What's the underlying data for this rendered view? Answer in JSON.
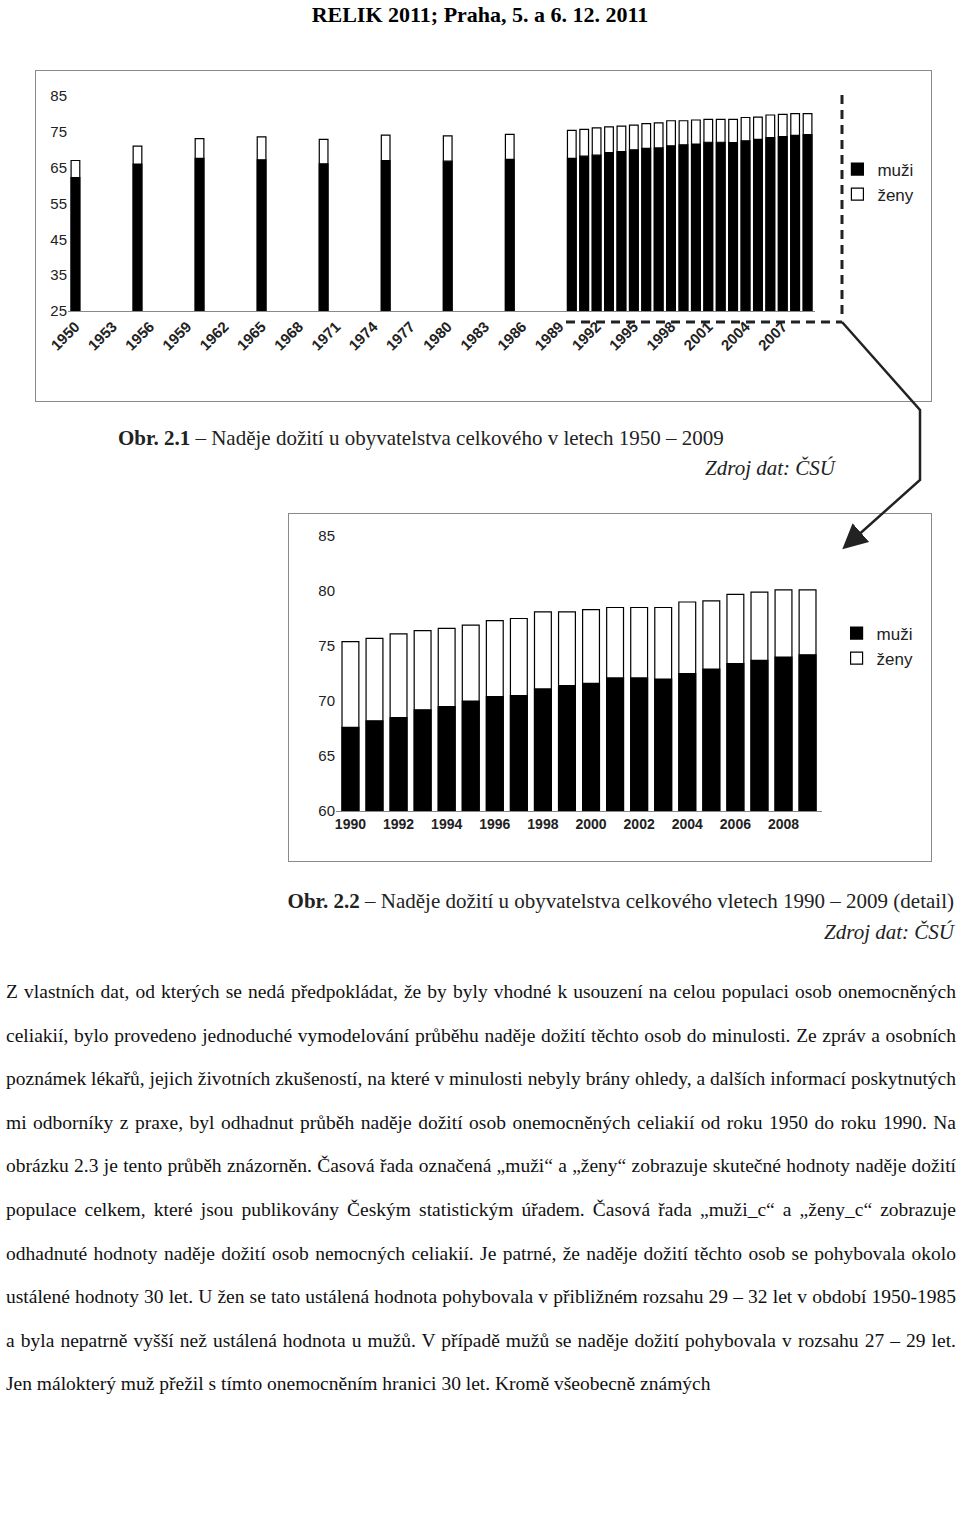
{
  "header": "RELIK 2011; Praha, 5. a 6. 12. 2011",
  "chart_data": [
    {
      "type": "bar",
      "categories": [
        "1950",
        null,
        null,
        "1953",
        null,
        null,
        "1956",
        null,
        null,
        "1959",
        null,
        null,
        "1962",
        null,
        null,
        "1965",
        null,
        null,
        "1968",
        null,
        null,
        "1971",
        null,
        null,
        "1974",
        null,
        null,
        "1977",
        null,
        null,
        "1980",
        null,
        null,
        "1983",
        null,
        null,
        "1986",
        null,
        null,
        "1989",
        null,
        null,
        "1992",
        null,
        null,
        "1995",
        null,
        null,
        "1998",
        null,
        null,
        "2001",
        null,
        null,
        "2004",
        null,
        null,
        "2007",
        null,
        null
      ],
      "series": [
        {
          "name": "ženy",
          "color": "#ffffff",
          "values": [
            67.0,
            null,
            null,
            null,
            null,
            71.0,
            null,
            null,
            null,
            null,
            73.1,
            null,
            null,
            null,
            null,
            73.6,
            null,
            null,
            null,
            null,
            72.9,
            null,
            null,
            null,
            null,
            74.1,
            null,
            null,
            null,
            null,
            73.9,
            null,
            null,
            null,
            null,
            74.3,
            null,
            null,
            null,
            null,
            75.4,
            75.7,
            76.1,
            76.4,
            76.6,
            76.9,
            77.3,
            77.5,
            78.1,
            78.1,
            78.3,
            78.5,
            78.5,
            78.5,
            79.0,
            79.1,
            79.7,
            79.9,
            80.1,
            80.1
          ]
        },
        {
          "name": "muži",
          "color": "#000000",
          "values": [
            62.2,
            null,
            null,
            null,
            null,
            66.0,
            null,
            null,
            null,
            null,
            67.6,
            null,
            null,
            null,
            null,
            67.2,
            null,
            null,
            null,
            null,
            66.1,
            null,
            null,
            null,
            null,
            67.0,
            null,
            null,
            null,
            null,
            66.8,
            null,
            null,
            null,
            null,
            67.3,
            null,
            null,
            null,
            null,
            67.6,
            68.2,
            68.5,
            69.2,
            69.5,
            70.0,
            70.4,
            70.5,
            71.1,
            71.4,
            71.6,
            72.1,
            72.1,
            72.0,
            72.5,
            72.9,
            73.4,
            73.7,
            74.0,
            74.2
          ]
        }
      ],
      "ylim": [
        25,
        85
      ],
      "yticks": [
        25,
        35,
        45,
        55,
        65,
        75,
        85
      ],
      "grid": false,
      "legend": "right"
    },
    {
      "type": "bar",
      "categories": [
        "1990",
        null,
        "1992",
        null,
        "1994",
        null,
        "1996",
        null,
        "1998",
        null,
        "2000",
        null,
        "2002",
        null,
        "2004",
        null,
        "2006",
        null,
        "2008",
        null
      ],
      "series": [
        {
          "name": "ženy",
          "color": "#ffffff",
          "values": [
            75.4,
            75.7,
            76.1,
            76.4,
            76.6,
            76.9,
            77.3,
            77.5,
            78.1,
            78.1,
            78.3,
            78.5,
            78.5,
            78.5,
            79.0,
            79.1,
            79.7,
            79.9,
            80.1,
            80.1
          ]
        },
        {
          "name": "muži",
          "color": "#000000",
          "values": [
            67.6,
            68.2,
            68.5,
            69.2,
            69.5,
            70.0,
            70.4,
            70.5,
            71.1,
            71.4,
            71.6,
            72.1,
            72.1,
            72.0,
            72.5,
            72.9,
            73.4,
            73.7,
            74.0,
            74.2
          ]
        }
      ],
      "ylim": [
        60,
        85
      ],
      "yticks": [
        60,
        65,
        70,
        75,
        80,
        85
      ],
      "grid": false,
      "legend": "right"
    }
  ],
  "figures": [
    {
      "label": "Obr. 2.1",
      "caption": " – Naděje dožití u obyvatelstva celkového v letech 1950 – 2009",
      "source": "Zdroj dat: ČSÚ"
    },
    {
      "label": "Obr. 2.2",
      "caption": " – Naděje dožití u obyvatelstva celkového vletech 1990 – 2009 (detail)",
      "source": "Zdroj dat: ČSÚ"
    }
  ],
  "paragraph": "Z vlastních dat, od kterých se nedá předpokládat, že by byly vhodné k usouzení na celou populaci osob onemocněných celiakií, bylo provedeno jednoduché vymodelování průběhu naděje dožití těchto osob do minulosti. Ze zpráv a osobních poznámek lékařů, jejich životních zkušeností, na které v minulosti nebyly brány ohledy, a dalších informací poskytnutých mi odborníky z praxe, byl odhadnut průběh naděje dožití osob onemocněných celiakií od roku 1950 do roku 1990. Na obrázku 2.3 je tento průběh znázorněn. Časová řada označená „muži“ a „ženy“ zobrazuje skutečné hodnoty naděje dožití populace celkem, které jsou publikovány Českým statistickým úřadem. Časová řada „muži_c“ a „ženy_c“ zobrazuje odhadnuté hodnoty naděje dožití osob nemocných celiakií. Je patrné, že naděje dožití těchto osob se pohybovala okolo ustálené hodnoty 30 let. U žen se tato ustálená hodnota pohybovala v přibližném rozsahu 29 – 32 let v období 1950-1985 a byla nepatrně vyšší než ustálená hodnota u mužů. V případě mužů se naděje dožití pohybovala v rozsahu 27 – 29 let. Jen málokterý muž přežil s tímto onemocněním hranici 30 let. Kromě všeobecně známých"
}
